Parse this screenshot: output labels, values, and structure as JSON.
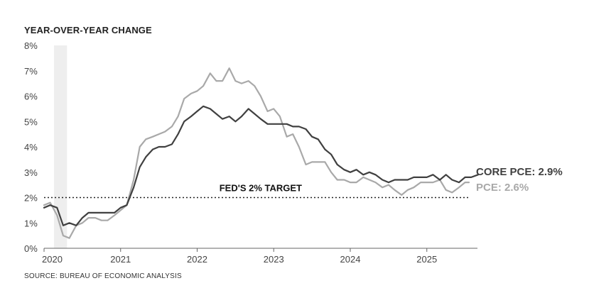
{
  "chart_data": {
    "type": "line",
    "ylabel": "YEAR-OVER-YEAR CHANGE",
    "source": "SOURCE: BUREAU OF ECONOMIC ANALYSIS",
    "ylim": [
      0,
      8
    ],
    "yticks": [
      "0%",
      "1%",
      "2%",
      "3%",
      "4%",
      "5%",
      "6%",
      "7%",
      "8%"
    ],
    "xlim": [
      2020.0,
      2025.55
    ],
    "xticks": [
      "2020",
      "2021",
      "2022",
      "2023",
      "2024",
      "2025"
    ],
    "grid": false,
    "shaded_region": {
      "from": 2020.13,
      "to": 2020.3,
      "color": "#eeeeee"
    },
    "reference_line": {
      "y": 2,
      "label": "FED'S 2% TARGET",
      "style": "dotted"
    },
    "series": [
      {
        "name": "PCE",
        "end_label": "PCE: 2.6%",
        "color": "#a9a9a9",
        "points": [
          [
            2020.0,
            1.7
          ],
          [
            2020.08,
            1.8
          ],
          [
            2020.17,
            1.3
          ],
          [
            2020.25,
            0.5
          ],
          [
            2020.33,
            0.4
          ],
          [
            2020.42,
            0.9
          ],
          [
            2020.5,
            1.0
          ],
          [
            2020.58,
            1.2
          ],
          [
            2020.67,
            1.2
          ],
          [
            2020.75,
            1.1
          ],
          [
            2020.83,
            1.1
          ],
          [
            2020.92,
            1.3
          ],
          [
            2021.0,
            1.5
          ],
          [
            2021.08,
            1.7
          ],
          [
            2021.17,
            2.7
          ],
          [
            2021.25,
            4.0
          ],
          [
            2021.33,
            4.3
          ],
          [
            2021.42,
            4.4
          ],
          [
            2021.5,
            4.5
          ],
          [
            2021.58,
            4.6
          ],
          [
            2021.67,
            4.8
          ],
          [
            2021.75,
            5.2
          ],
          [
            2021.83,
            5.9
          ],
          [
            2021.92,
            6.1
          ],
          [
            2022.0,
            6.2
          ],
          [
            2022.08,
            6.4
          ],
          [
            2022.17,
            6.9
          ],
          [
            2022.25,
            6.6
          ],
          [
            2022.33,
            6.6
          ],
          [
            2022.42,
            7.1
          ],
          [
            2022.5,
            6.6
          ],
          [
            2022.58,
            6.5
          ],
          [
            2022.67,
            6.6
          ],
          [
            2022.75,
            6.4
          ],
          [
            2022.83,
            6.0
          ],
          [
            2022.92,
            5.4
          ],
          [
            2023.0,
            5.5
          ],
          [
            2023.08,
            5.2
          ],
          [
            2023.17,
            4.4
          ],
          [
            2023.25,
            4.5
          ],
          [
            2023.33,
            4.0
          ],
          [
            2023.42,
            3.3
          ],
          [
            2023.5,
            3.4
          ],
          [
            2023.58,
            3.4
          ],
          [
            2023.67,
            3.4
          ],
          [
            2023.75,
            3.0
          ],
          [
            2023.83,
            2.7
          ],
          [
            2023.92,
            2.7
          ],
          [
            2024.0,
            2.6
          ],
          [
            2024.08,
            2.6
          ],
          [
            2024.17,
            2.8
          ],
          [
            2024.25,
            2.7
          ],
          [
            2024.33,
            2.6
          ],
          [
            2024.42,
            2.4
          ],
          [
            2024.5,
            2.5
          ],
          [
            2024.58,
            2.3
          ],
          [
            2024.67,
            2.1
          ],
          [
            2024.75,
            2.3
          ],
          [
            2024.83,
            2.4
          ],
          [
            2024.92,
            2.6
          ],
          [
            2025.0,
            2.6
          ],
          [
            2025.08,
            2.6
          ],
          [
            2025.17,
            2.7
          ],
          [
            2025.25,
            2.3
          ],
          [
            2025.33,
            2.2
          ],
          [
            2025.42,
            2.4
          ],
          [
            2025.5,
            2.6
          ],
          [
            2025.55,
            2.6
          ]
        ]
      },
      {
        "name": "CORE PCE",
        "end_label": "CORE PCE: 2.9%",
        "color": "#404040",
        "points": [
          [
            2020.0,
            1.6
          ],
          [
            2020.08,
            1.7
          ],
          [
            2020.17,
            1.6
          ],
          [
            2020.25,
            0.9
          ],
          [
            2020.33,
            1.0
          ],
          [
            2020.42,
            0.9
          ],
          [
            2020.5,
            1.2
          ],
          [
            2020.58,
            1.4
          ],
          [
            2020.67,
            1.4
          ],
          [
            2020.75,
            1.4
          ],
          [
            2020.83,
            1.4
          ],
          [
            2020.92,
            1.4
          ],
          [
            2021.0,
            1.6
          ],
          [
            2021.08,
            1.7
          ],
          [
            2021.17,
            2.4
          ],
          [
            2021.25,
            3.2
          ],
          [
            2021.33,
            3.6
          ],
          [
            2021.42,
            3.9
          ],
          [
            2021.5,
            4.0
          ],
          [
            2021.58,
            4.0
          ],
          [
            2021.67,
            4.1
          ],
          [
            2021.75,
            4.5
          ],
          [
            2021.83,
            5.0
          ],
          [
            2021.92,
            5.2
          ],
          [
            2022.0,
            5.4
          ],
          [
            2022.08,
            5.6
          ],
          [
            2022.17,
            5.5
          ],
          [
            2022.25,
            5.3
          ],
          [
            2022.33,
            5.1
          ],
          [
            2022.42,
            5.2
          ],
          [
            2022.5,
            5.0
          ],
          [
            2022.58,
            5.2
          ],
          [
            2022.67,
            5.5
          ],
          [
            2022.75,
            5.3
          ],
          [
            2022.83,
            5.1
          ],
          [
            2022.92,
            4.9
          ],
          [
            2023.0,
            4.9
          ],
          [
            2023.08,
            4.9
          ],
          [
            2023.17,
            4.9
          ],
          [
            2023.25,
            4.8
          ],
          [
            2023.33,
            4.8
          ],
          [
            2023.42,
            4.7
          ],
          [
            2023.5,
            4.4
          ],
          [
            2023.58,
            4.3
          ],
          [
            2023.67,
            3.9
          ],
          [
            2023.75,
            3.7
          ],
          [
            2023.83,
            3.3
          ],
          [
            2023.92,
            3.1
          ],
          [
            2024.0,
            3.0
          ],
          [
            2024.08,
            3.1
          ],
          [
            2024.17,
            2.9
          ],
          [
            2024.25,
            3.0
          ],
          [
            2024.33,
            2.9
          ],
          [
            2024.42,
            2.7
          ],
          [
            2024.5,
            2.6
          ],
          [
            2024.58,
            2.7
          ],
          [
            2024.67,
            2.7
          ],
          [
            2024.75,
            2.7
          ],
          [
            2024.83,
            2.8
          ],
          [
            2024.92,
            2.8
          ],
          [
            2025.0,
            2.8
          ],
          [
            2025.08,
            2.9
          ],
          [
            2025.17,
            2.7
          ],
          [
            2025.25,
            2.9
          ],
          [
            2025.33,
            2.7
          ],
          [
            2025.42,
            2.6
          ],
          [
            2025.5,
            2.8
          ],
          [
            2025.58,
            2.8
          ],
          [
            2025.67,
            2.9
          ]
        ]
      }
    ]
  }
}
